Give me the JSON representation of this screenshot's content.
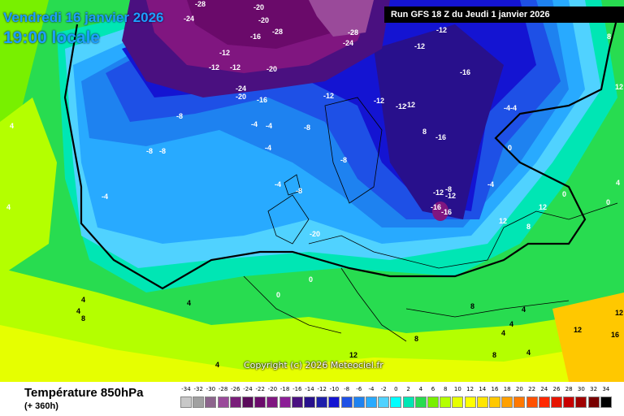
{
  "header": {
    "date_line": "Vendredi 16 janvier 2026",
    "time_line": "19:00 locale",
    "run_info": "Run GFS 18 Z du Jeudi 1 janvier 2026",
    "copyright": "Copyright (c) 2026 Meteociel.fr"
  },
  "footer": {
    "variable_title": "Température 850hPa",
    "lead_time": "(+ 360h)"
  },
  "legend": {
    "steps": [
      {
        "label": "-34",
        "color": "#c8c8c8"
      },
      {
        "label": "-32",
        "color": "#a0a0a0"
      },
      {
        "label": "-30",
        "color": "#8c648c"
      },
      {
        "label": "-28",
        "color": "#9a4a9a"
      },
      {
        "label": "-26",
        "color": "#7a1e7a"
      },
      {
        "label": "-24",
        "color": "#5a0a5a"
      },
      {
        "label": "-22",
        "color": "#6a0a6a"
      },
      {
        "label": "-20",
        "color": "#801680"
      },
      {
        "label": "-18",
        "color": "#8c1e96"
      },
      {
        "label": "-16",
        "color": "#4a1080"
      },
      {
        "label": "-14",
        "color": "#28108c"
      },
      {
        "label": "-12",
        "color": "#1e1eaa"
      },
      {
        "label": "-10",
        "color": "#1414d2"
      },
      {
        "label": "-8",
        "color": "#1e50e6"
      },
      {
        "label": "-6",
        "color": "#1e82f0"
      },
      {
        "label": "-4",
        "color": "#28aaff"
      },
      {
        "label": "-2",
        "color": "#50d2ff"
      },
      {
        "label": "0",
        "color": "#00ffff"
      },
      {
        "label": "2",
        "color": "#00e6b4"
      },
      {
        "label": "4",
        "color": "#28dc50"
      },
      {
        "label": "6",
        "color": "#78f000"
      },
      {
        "label": "8",
        "color": "#b4ff00"
      },
      {
        "label": "10",
        "color": "#e6ff00"
      },
      {
        "label": "12",
        "color": "#ffff00"
      },
      {
        "label": "14",
        "color": "#ffe600"
      },
      {
        "label": "16",
        "color": "#ffc800"
      },
      {
        "label": "18",
        "color": "#ffa000"
      },
      {
        "label": "20",
        "color": "#ff7800"
      },
      {
        "label": "22",
        "color": "#ff5000"
      },
      {
        "label": "24",
        "color": "#ff2800"
      },
      {
        "label": "26",
        "color": "#e61400"
      },
      {
        "label": "28",
        "color": "#c80000"
      },
      {
        "label": "30",
        "color": "#a00000"
      },
      {
        "label": "32",
        "color": "#780000"
      },
      {
        "label": "34",
        "color": "#000000"
      }
    ]
  },
  "map_labels": [
    "-28",
    "-20",
    "-24",
    "-20",
    "-16",
    "-28",
    "-12",
    "-28",
    "-24",
    "-12",
    "-12",
    "-12",
    "-20",
    "-12",
    "-24",
    "-20",
    "-16",
    "-12",
    "-12",
    "-16",
    "-12",
    "-12",
    "-8",
    "-4",
    "-4",
    "-8",
    "-8",
    "-8",
    "-4",
    "-4",
    "-8",
    "-4-4",
    "-16",
    "0",
    "-8",
    "-4",
    "-4",
    "-8",
    "-16",
    "-16",
    "-20",
    "0",
    "12",
    "12",
    "0",
    "4",
    "0",
    "0",
    "4",
    "4",
    "8",
    "4",
    "4",
    "4",
    "4",
    "4",
    "4",
    "8",
    "12",
    "12",
    "8",
    "8",
    "12",
    "16",
    "-12",
    "8",
    "4",
    "4",
    "8",
    "12",
    "8",
    "-12"
  ]
}
